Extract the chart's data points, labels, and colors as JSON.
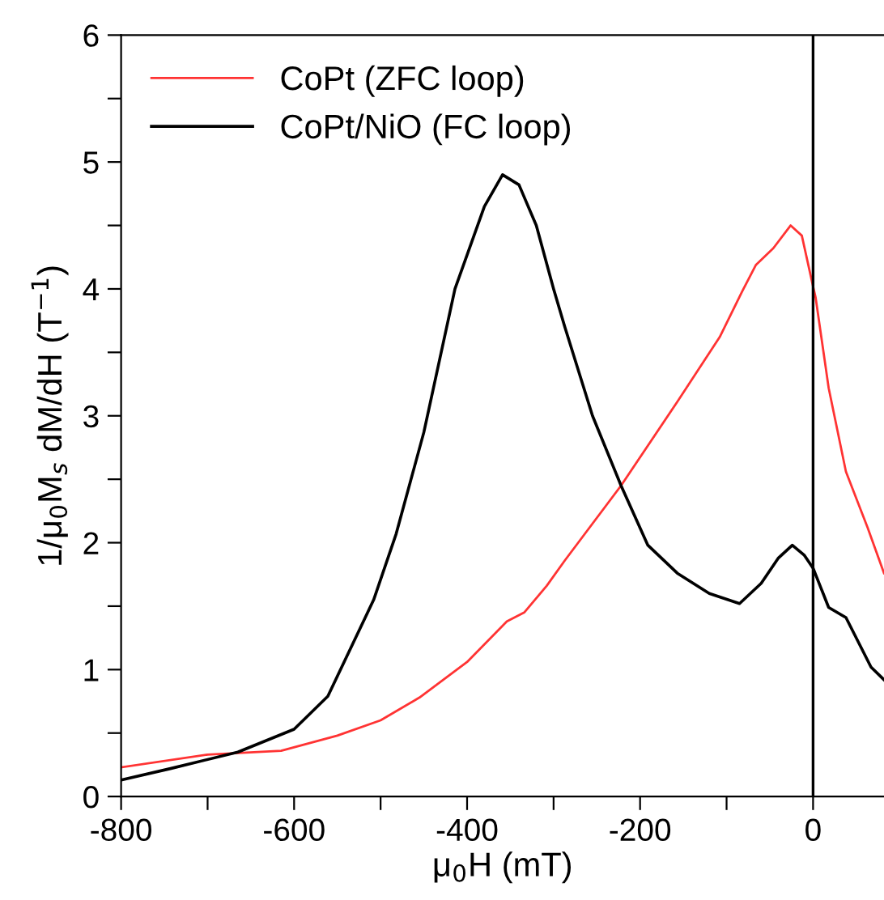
{
  "chart_data": {
    "type": "line",
    "xlabel": "μ$_{0}$H (mT)",
    "ylabel": "1/μ$_{0}$M$_{s}$ dM/dH (T$^{−1}$)",
    "xlim": [
      -800,
      82
    ],
    "ylim": [
      0,
      6
    ],
    "xticks": [
      -800,
      {
        "value": -700,
        "label": null
      },
      -600,
      {
        "value": -500,
        "label": null
      },
      -400,
      {
        "value": -300,
        "label": null
      },
      -200,
      {
        "value": -100,
        "label": null
      },
      0
    ],
    "yticks": [
      0,
      {
        "value": 0.5,
        "label": null
      },
      1,
      {
        "value": 1.5,
        "label": null
      },
      2,
      {
        "value": 2.5,
        "label": null
      },
      3,
      {
        "value": 3.5,
        "label": null
      },
      4,
      {
        "value": 4.5,
        "label": null
      },
      5,
      {
        "value": 5.5,
        "label": null
      },
      6
    ],
    "grid": false,
    "legend": "top left",
    "marker": "none",
    "ref_lines": [
      {
        "axis": "x",
        "value": 0,
        "color": "#000000"
      }
    ],
    "series": [
      {
        "name": "CoPt (ZFC loop)",
        "color": "#ff3333",
        "line_style": "solid",
        "x": [
          -800,
          -700,
          -615,
          -550,
          -500,
          -455,
          -400,
          -354,
          -334,
          -308,
          -287,
          -222,
          -157,
          -108,
          -82,
          -66,
          -46,
          -26,
          -13,
          -1,
          3,
          18,
          38,
          63,
          82
        ],
        "values": [
          0.23,
          0.33,
          0.36,
          0.48,
          0.6,
          0.78,
          1.06,
          1.38,
          1.45,
          1.66,
          1.86,
          2.45,
          3.11,
          3.62,
          3.98,
          4.19,
          4.32,
          4.5,
          4.42,
          4.05,
          3.93,
          3.22,
          2.56,
          2.12,
          1.76
        ]
      },
      {
        "name": "CoPt/NiO (FC loop)",
        "color": "#000000",
        "line_style": "solid",
        "x": [
          -800,
          -743,
          -665,
          -600,
          -561,
          -508,
          -482,
          -450,
          -414,
          -380,
          -359,
          -340,
          -320,
          -300,
          -287,
          -255,
          -222,
          -191,
          -157,
          -120,
          -85,
          -60,
          -40,
          -24,
          -10,
          0,
          18,
          38,
          67,
          82
        ],
        "values": [
          0.13,
          0.22,
          0.35,
          0.53,
          0.79,
          1.55,
          2.07,
          2.87,
          4.0,
          4.65,
          4.9,
          4.82,
          4.5,
          4.0,
          3.7,
          3.0,
          2.45,
          1.98,
          1.76,
          1.6,
          1.52,
          1.68,
          1.88,
          1.98,
          1.9,
          1.8,
          1.49,
          1.41,
          1.02,
          0.92
        ]
      }
    ]
  }
}
